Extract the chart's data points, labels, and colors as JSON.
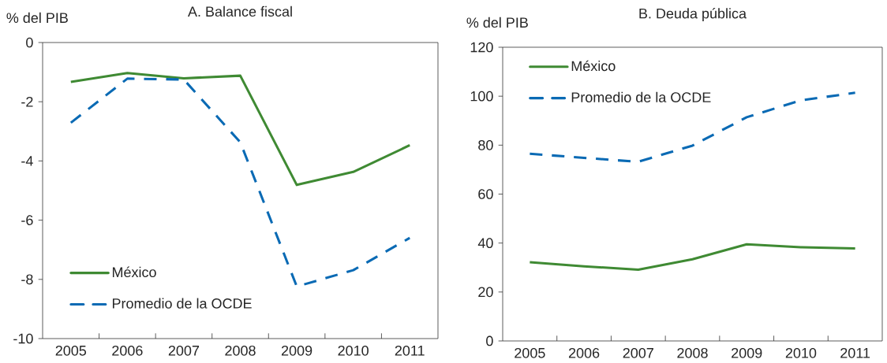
{
  "chart_data": [
    {
      "type": "line",
      "title": "A. Balance fiscal",
      "ylabel": "% del PIB",
      "categories": [
        "2005",
        "2006",
        "2007",
        "2008",
        "2009",
        "2010",
        "2011"
      ],
      "series": [
        {
          "name": "México",
          "color": "#3f8a33",
          "line_style": "solid",
          "values": [
            -1.33,
            -1.03,
            -1.21,
            -1.12,
            -4.81,
            -4.37,
            -3.47
          ]
        },
        {
          "name": "Promedio de la OCDE",
          "color": "#0a6ab4",
          "line_style": "dashed",
          "values": [
            -2.71,
            -1.22,
            -1.25,
            -3.37,
            -8.24,
            -7.69,
            -6.6
          ]
        }
      ],
      "ylim": [
        -10,
        0
      ],
      "yticks": [
        -10,
        -8,
        -6,
        -4,
        -2,
        0
      ],
      "legend": "bottom left",
      "grid": false
    },
    {
      "type": "line",
      "title": "B. Deuda pública",
      "ylabel": "% del PIB",
      "categories": [
        "2005",
        "2006",
        "2007",
        "2008",
        "2009",
        "2010",
        "2011"
      ],
      "series": [
        {
          "name": "México",
          "color": "#3f8a33",
          "line_style": "solid",
          "values": [
            32.2,
            30.5,
            29.1,
            33.4,
            39.5,
            38.3,
            37.8
          ]
        },
        {
          "name": "Promedio de la OCDE",
          "color": "#0a6ab4",
          "line_style": "dashed",
          "values": [
            76.5,
            74.8,
            73.2,
            79.8,
            91.4,
            98.3,
            101.4
          ]
        }
      ],
      "ylim": [
        0,
        120
      ],
      "yticks": [
        0,
        20,
        40,
        60,
        80,
        100,
        120
      ],
      "legend": "top left",
      "grid": false
    }
  ]
}
